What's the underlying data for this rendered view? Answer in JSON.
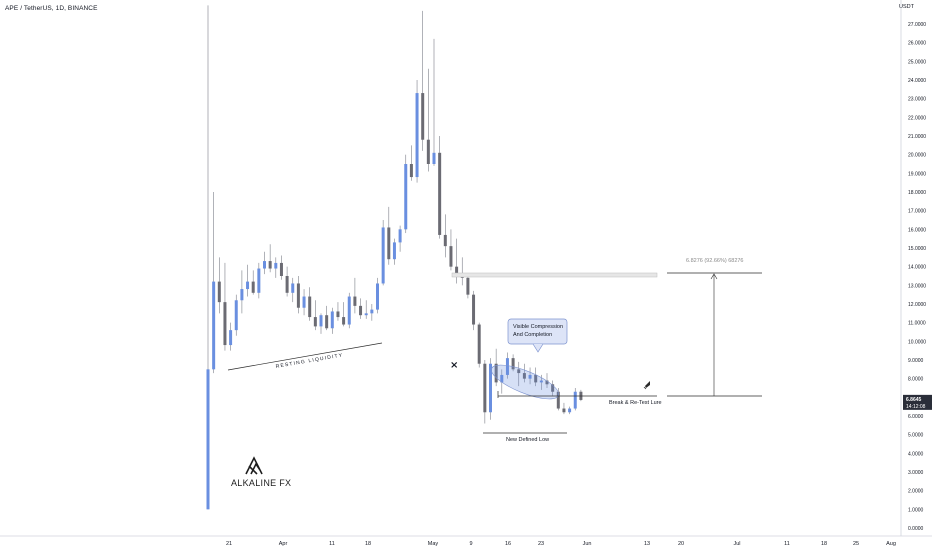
{
  "header": {
    "title": "APE / TetherUS, 1D, BINANCE",
    "unit": "USDT"
  },
  "chart_data": {
    "type": "candlestick",
    "yaxis": {
      "ylim": [
        0,
        28
      ],
      "ticks": [
        "0.0000",
        "1.0000",
        "2.0000",
        "3.0000",
        "4.0000",
        "5.0000",
        "6.0000",
        "7.0000",
        "8.0000",
        "9.0000",
        "10.0000",
        "11.0000",
        "12.0000",
        "13.0000",
        "14.0000",
        "15.0000",
        "16.0000",
        "17.0000",
        "18.0000",
        "19.0000",
        "20.0000",
        "21.0000",
        "22.0000",
        "23.0000",
        "24.0000",
        "25.0000",
        "26.0000",
        "27.0000"
      ],
      "current_price": "6.8645",
      "countdown": "14:12:08"
    },
    "xaxis": {
      "labels": [
        "21",
        "Apr",
        "11",
        "18",
        "May",
        "9",
        "16",
        "23",
        "Jun",
        "13",
        "20",
        "Jul",
        "11",
        "18",
        "25",
        "Aug"
      ]
    },
    "candles": [
      {
        "o": 1,
        "h": 28,
        "l": 1,
        "c": 8.5
      },
      {
        "o": 8.5,
        "h": 18,
        "l": 8.3,
        "c": 13.2
      },
      {
        "o": 13.2,
        "h": 14.5,
        "l": 11.5,
        "c": 12.1
      },
      {
        "o": 12.1,
        "h": 14.2,
        "l": 9.5,
        "c": 9.8
      },
      {
        "o": 9.8,
        "h": 11,
        "l": 9.5,
        "c": 10.6
      },
      {
        "o": 10.6,
        "h": 12.5,
        "l": 10.3,
        "c": 12.2
      },
      {
        "o": 12.2,
        "h": 13.8,
        "l": 11.5,
        "c": 12.8
      },
      {
        "o": 12.8,
        "h": 14.1,
        "l": 12.4,
        "c": 13.2
      },
      {
        "o": 13.2,
        "h": 13.8,
        "l": 12.5,
        "c": 12.6
      },
      {
        "o": 12.6,
        "h": 14.2,
        "l": 12.3,
        "c": 13.9
      },
      {
        "o": 13.9,
        "h": 14.8,
        "l": 13.6,
        "c": 14.3
      },
      {
        "o": 14.3,
        "h": 15.2,
        "l": 13.7,
        "c": 13.9
      },
      {
        "o": 13.9,
        "h": 14.5,
        "l": 13.4,
        "c": 14.2
      },
      {
        "o": 14.2,
        "h": 14.6,
        "l": 13.3,
        "c": 13.5
      },
      {
        "o": 13.5,
        "h": 14,
        "l": 12.4,
        "c": 12.6
      },
      {
        "o": 12.6,
        "h": 13.4,
        "l": 12.1,
        "c": 13.1
      },
      {
        "o": 13.1,
        "h": 13.5,
        "l": 11.5,
        "c": 11.8
      },
      {
        "o": 11.8,
        "h": 12.8,
        "l": 11.4,
        "c": 12.4
      },
      {
        "o": 12.4,
        "h": 12.9,
        "l": 11.1,
        "c": 11.3
      },
      {
        "o": 11.3,
        "h": 12.2,
        "l": 10.6,
        "c": 10.8
      },
      {
        "o": 10.8,
        "h": 11.5,
        "l": 10.4,
        "c": 11.4
      },
      {
        "o": 11.4,
        "h": 11.9,
        "l": 10.6,
        "c": 10.7
      },
      {
        "o": 10.7,
        "h": 11.8,
        "l": 10.4,
        "c": 11.6
      },
      {
        "o": 11.6,
        "h": 12.1,
        "l": 11.1,
        "c": 11.3
      },
      {
        "o": 11.3,
        "h": 12.1,
        "l": 10.8,
        "c": 10.9
      },
      {
        "o": 10.9,
        "h": 12.6,
        "l": 10.7,
        "c": 12.4
      },
      {
        "o": 12.4,
        "h": 13.4,
        "l": 11.5,
        "c": 11.9
      },
      {
        "o": 11.9,
        "h": 12.3,
        "l": 11.2,
        "c": 11.4
      },
      {
        "o": 11.4,
        "h": 12.2,
        "l": 11.2,
        "c": 11.5
      },
      {
        "o": 11.5,
        "h": 12,
        "l": 11.1,
        "c": 11.7
      },
      {
        "o": 11.7,
        "h": 13.4,
        "l": 11.5,
        "c": 13.1
      },
      {
        "o": 13.1,
        "h": 16.5,
        "l": 13,
        "c": 16.1
      },
      {
        "o": 16.1,
        "h": 17.2,
        "l": 14.1,
        "c": 14.4
      },
      {
        "o": 14.4,
        "h": 15.5,
        "l": 14.1,
        "c": 15.3
      },
      {
        "o": 15.3,
        "h": 16.2,
        "l": 14.8,
        "c": 16
      },
      {
        "o": 16,
        "h": 20,
        "l": 15.8,
        "c": 19.5
      },
      {
        "o": 19.5,
        "h": 20.5,
        "l": 18.6,
        "c": 18.8
      },
      {
        "o": 18.8,
        "h": 24,
        "l": 18.5,
        "c": 23.3
      },
      {
        "o": 23.3,
        "h": 27.7,
        "l": 20.2,
        "c": 20.8
      },
      {
        "o": 20.8,
        "h": 24.6,
        "l": 19.1,
        "c": 19.5
      },
      {
        "o": 19.5,
        "h": 26.2,
        "l": 19.4,
        "c": 20.1
      },
      {
        "o": 20.1,
        "h": 21,
        "l": 15.5,
        "c": 15.7
      },
      {
        "o": 15.7,
        "h": 16.8,
        "l": 14.5,
        "c": 15.1
      },
      {
        "o": 15.1,
        "h": 16,
        "l": 13.8,
        "c": 14
      },
      {
        "o": 14,
        "h": 15.5,
        "l": 13.1,
        "c": 13.5
      },
      {
        "o": 13.5,
        "h": 14.5,
        "l": 13,
        "c": 13.4
      },
      {
        "o": 13.4,
        "h": 13.6,
        "l": 12.3,
        "c": 12.5
      },
      {
        "o": 12.5,
        "h": 12.7,
        "l": 10.6,
        "c": 10.9
      },
      {
        "o": 10.9,
        "h": 11,
        "l": 8.6,
        "c": 8.8
      },
      {
        "o": 8.8,
        "h": 9,
        "l": 5.6,
        "c": 6.2
      },
      {
        "o": 6.2,
        "h": 9.1,
        "l": 5.8,
        "c": 8.8
      },
      {
        "o": 8.8,
        "h": 9.6,
        "l": 7.6,
        "c": 7.8
      },
      {
        "o": 7.8,
        "h": 8.5,
        "l": 7.2,
        "c": 8.2
      },
      {
        "o": 8.2,
        "h": 9.4,
        "l": 8,
        "c": 9.1
      },
      {
        "o": 9.1,
        "h": 9.3,
        "l": 8.4,
        "c": 8.5
      },
      {
        "o": 8.5,
        "h": 8.9,
        "l": 7.6,
        "c": 8.3
      },
      {
        "o": 8.3,
        "h": 8.8,
        "l": 7.8,
        "c": 8
      },
      {
        "o": 8,
        "h": 8.6,
        "l": 7.7,
        "c": 8.2
      },
      {
        "o": 8.2,
        "h": 8.6,
        "l": 7.6,
        "c": 7.8
      },
      {
        "o": 7.8,
        "h": 8.2,
        "l": 7.4,
        "c": 7.9
      },
      {
        "o": 7.9,
        "h": 8.3,
        "l": 7.5,
        "c": 7.7
      },
      {
        "o": 7.7,
        "h": 7.9,
        "l": 7.1,
        "c": 7.3
      },
      {
        "o": 7.3,
        "h": 7.5,
        "l": 6.3,
        "c": 6.4
      },
      {
        "o": 6.4,
        "h": 6.7,
        "l": 6.1,
        "c": 6.2
      },
      {
        "o": 6.2,
        "h": 6.5,
        "l": 6.1,
        "c": 6.4
      },
      {
        "o": 6.4,
        "h": 7.5,
        "l": 6.3,
        "c": 7.3
      },
      {
        "o": 7.3,
        "h": 7.4,
        "l": 6.8,
        "c": 6.86
      }
    ],
    "colors": {
      "up": "#6a8fe0",
      "down": "#6b6b73",
      "border": "#9ea1ab",
      "callout_fill": "#dde4f7",
      "callout_stroke": "#7d93cf",
      "zone_fill": "#e6e6e6"
    },
    "annotations": {
      "resting_liquidity": "RESTING LIQUIDITY",
      "callout_line1": "Visible Compression",
      "callout_line2": "And Completion",
      "break_retest": "Break & Re-Test Lure",
      "new_low": "New Defined Low",
      "measure": "6.8276 (92.66%) 68276",
      "x_mark": "×"
    }
  },
  "branding": {
    "logo_text": "ALKALINE FX"
  }
}
